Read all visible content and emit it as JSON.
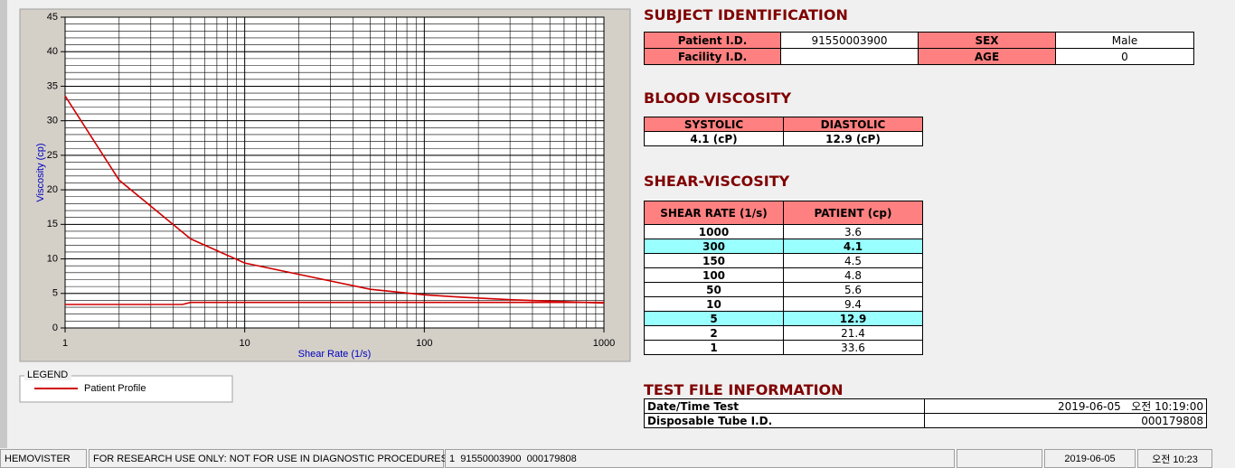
{
  "chart_data": {
    "type": "line",
    "x_label": "Shear Rate (1/s)",
    "y_label": "Viscosity (cp)",
    "x_scale": "log",
    "xlim": [
      1,
      1000
    ],
    "xticks": [
      1,
      10,
      100,
      1000
    ],
    "ylim": [
      0,
      45
    ],
    "yticks": [
      0,
      5,
      10,
      15,
      20,
      25,
      30,
      35,
      40,
      45
    ],
    "grid": true,
    "legend_title": "LEGEND",
    "series": [
      {
        "name": "Patient Profile",
        "color": "#d00000",
        "x": [
          1,
          2,
          5,
          10,
          50,
          100,
          150,
          300,
          1000
        ],
        "values": [
          33.6,
          21.4,
          12.9,
          9.4,
          5.6,
          4.8,
          4.5,
          4.1,
          3.6
        ]
      },
      {
        "color": "#d00000",
        "x": [
          1,
          4.5,
          5,
          1000
        ],
        "values": [
          3.4,
          3.4,
          3.7,
          3.7
        ]
      }
    ]
  },
  "subject": {
    "title": "SUBJECT IDENTIFICATION",
    "fields": [
      {
        "label": "Patient I.D.",
        "value": "91550003900"
      },
      {
        "label": "SEX",
        "value": "Male"
      },
      {
        "label": "Facility I.D."
      },
      {
        "label": "AGE",
        "value": "0"
      }
    ]
  },
  "blood_viscosity": {
    "title": "BLOOD VISCOSITY",
    "headers": [
      "SYSTOLIC",
      "DIASTOLIC"
    ],
    "values": [
      "4.1 (cP)",
      "12.9 (cP)"
    ]
  },
  "shear_viscosity": {
    "title": "SHEAR-VISCOSITY",
    "headers": [
      "SHEAR RATE (1/s)",
      "PATIENT (cp)"
    ],
    "rows": [
      {
        "rate": 1000,
        "value": 3.6
      },
      {
        "rate": 300,
        "value": 4.1,
        "highlight": true
      },
      {
        "rate": 150,
        "value": 4.5
      },
      {
        "rate": 100,
        "value": 4.8
      },
      {
        "rate": 50,
        "value": 5.6
      },
      {
        "rate": 10,
        "value": 9.4
      },
      {
        "rate": 5,
        "value": 12.9,
        "highlight": true
      },
      {
        "rate": 2,
        "value": 21.4
      },
      {
        "rate": 1,
        "value": 33.6
      }
    ]
  },
  "test_file": {
    "title": "TEST FILE INFORMATION",
    "rows": [
      {
        "label": "Date/Time Test",
        "value": "2019-06-05   오전 10:19:00"
      },
      {
        "label": "Disposable Tube I.D.",
        "value": "000179808"
      }
    ]
  },
  "status_bar": [
    "HEMOVISTER",
    "FOR RESEARCH USE ONLY: NOT FOR USE IN DIAGNOSTIC PROCEDURES",
    "1  91550003900  000179808",
    "2019-06-05",
    "오전 10:23"
  ]
}
